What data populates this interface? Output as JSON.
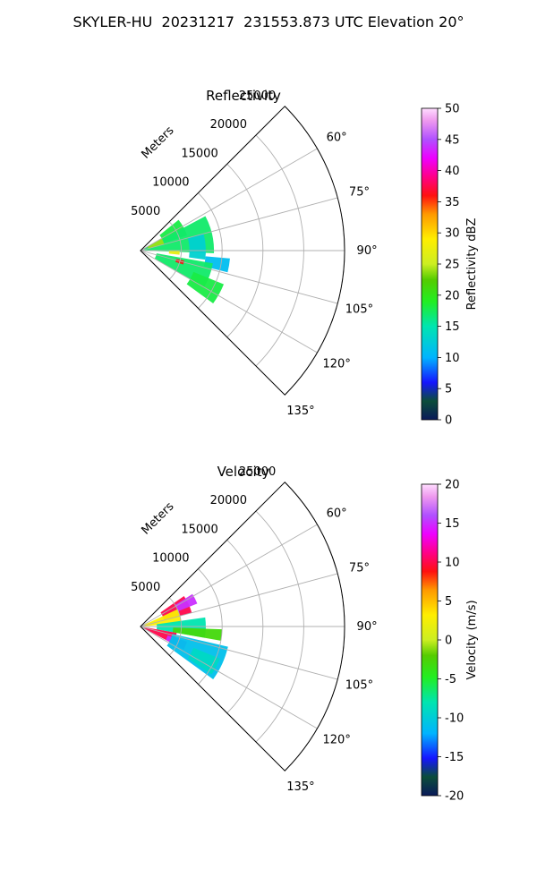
{
  "suptitle": "SKYLER-HU  20231217  231553.873 UTC Elevation 20°",
  "chart_data": [
    {
      "type": "polar-sector-heatmap",
      "title": "Reflectivity",
      "radial_label": "Meters",
      "radial_ticks": [
        "5000",
        "10000",
        "15000",
        "20000",
        "25000"
      ],
      "radial_tick_values": [
        5000,
        10000,
        15000,
        20000,
        25000
      ],
      "rmax": 25000,
      "angle_range_deg": [
        45,
        135
      ],
      "angle_ticks": [
        "60°",
        "75°",
        "90°",
        "105°",
        "120°",
        "135°"
      ],
      "angle_tick_values": [
        60,
        75,
        90,
        105,
        120,
        135
      ],
      "grid": true,
      "colorbar": {
        "label": "Reflectivity dBZ",
        "range": [
          0,
          50
        ],
        "ticks": [
          "0",
          "5",
          "10",
          "15",
          "20",
          "25",
          "30",
          "35",
          "40",
          "45",
          "50"
        ],
        "tick_values": [
          0,
          5,
          10,
          15,
          20,
          25,
          30,
          35,
          40,
          45,
          50
        ]
      },
      "echo_regions": [
        {
          "az": [
            51,
            72
          ],
          "r": [
            3000,
            6000
          ],
          "value": 18
        },
        {
          "az": [
            62,
            92
          ],
          "r": [
            500,
            9000
          ],
          "value": 17
        },
        {
          "az": [
            75,
            98
          ],
          "r": [
            6000,
            8000
          ],
          "value": 13
        },
        {
          "az": [
            95,
            104
          ],
          "r": [
            8000,
            11000
          ],
          "value": 11
        },
        {
          "az": [
            100,
            120
          ],
          "r": [
            2000,
            9000
          ],
          "value": 17
        },
        {
          "az": [
            112,
            126
          ],
          "r": [
            7000,
            11000
          ],
          "value": 18
        },
        {
          "az": [
            103,
            108
          ],
          "r": [
            4500,
            5500
          ],
          "value": 36
        },
        {
          "az": [
            90,
            96
          ],
          "r": [
            3500,
            4800
          ],
          "value": 27
        },
        {
          "az": [
            60,
            75
          ],
          "r": [
            1000,
            3000
          ],
          "value": 24
        }
      ]
    },
    {
      "type": "polar-sector-heatmap",
      "title": "Velocity",
      "radial_label": "Meters",
      "radial_ticks": [
        "5000",
        "10000",
        "15000",
        "20000",
        "25000"
      ],
      "radial_tick_values": [
        5000,
        10000,
        15000,
        20000,
        25000
      ],
      "rmax": 25000,
      "angle_range_deg": [
        45,
        135
      ],
      "angle_ticks": [
        "60°",
        "75°",
        "90°",
        "105°",
        "120°",
        "135°"
      ],
      "angle_tick_values": [
        60,
        75,
        90,
        105,
        120,
        135
      ],
      "grid": true,
      "colorbar": {
        "label": "Velocity (m/s)",
        "range": [
          -20,
          20
        ],
        "ticks": [
          "-20",
          "-15",
          "-10",
          "-5",
          "0",
          "5",
          "10",
          "15",
          "20"
        ],
        "tick_values": [
          -20,
          -15,
          -10,
          -5,
          0,
          5,
          10,
          15,
          20
        ]
      },
      "echo_regions": [
        {
          "az": [
            55,
            75
          ],
          "r": [
            3000,
            6500
          ],
          "value": 10
        },
        {
          "az": [
            58,
            68
          ],
          "r": [
            5000,
            7500
          ],
          "value": 15
        },
        {
          "az": [
            65,
            85
          ],
          "r": [
            500,
            5000
          ],
          "value": 3
        },
        {
          "az": [
            82,
            100
          ],
          "r": [
            2000,
            8000
          ],
          "value": -8
        },
        {
          "az": [
            92,
            100
          ],
          "r": [
            4000,
            10000
          ],
          "value": -3
        },
        {
          "az": [
            100,
            118
          ],
          "r": [
            500,
            4500
          ],
          "value": 10
        },
        {
          "az": [
            108,
            118
          ],
          "r": [
            3500,
            6000
          ],
          "value": 15
        },
        {
          "az": [
            103,
            126
          ],
          "r": [
            4000,
            11000
          ],
          "value": -11
        },
        {
          "az": [
            112,
            124
          ],
          "r": [
            7000,
            10500
          ],
          "value": -9
        }
      ]
    }
  ]
}
